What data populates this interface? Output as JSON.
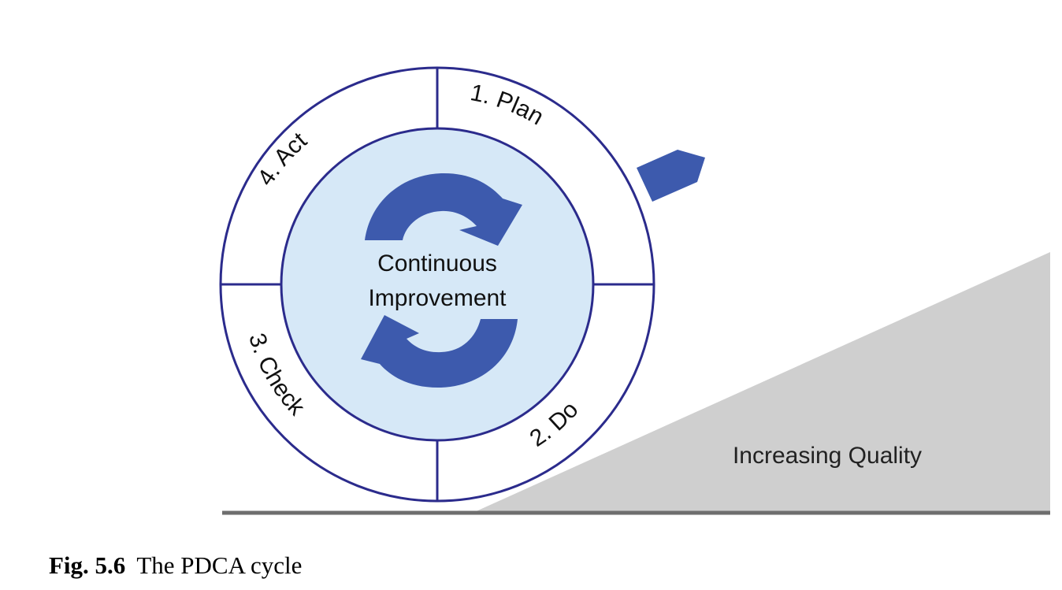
{
  "diagram": {
    "steps": [
      {
        "label": "1. Plan"
      },
      {
        "label": "2. Do"
      },
      {
        "label": "3. Check"
      },
      {
        "label": "4. Act"
      }
    ],
    "center": {
      "line1": "Continuous",
      "line2": "Improvement"
    },
    "slope_label": "Increasing Quality",
    "colors": {
      "ring_stroke": "#2b2b8c",
      "inner_fill": "#d6e8f7",
      "arrow_fill": "#3d5aad",
      "slope_fill": "#cfcfcf",
      "ground": "#6e6e6e"
    }
  },
  "caption": {
    "number": "Fig. 5.6",
    "text": "The PDCA cycle"
  }
}
